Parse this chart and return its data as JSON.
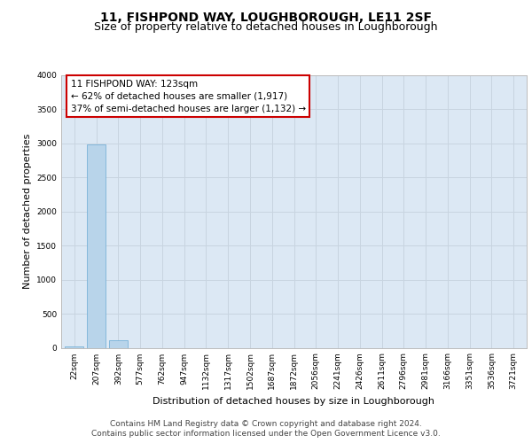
{
  "title": "11, FISHPOND WAY, LOUGHBOROUGH, LE11 2SF",
  "subtitle": "Size of property relative to detached houses in Loughborough",
  "xlabel": "Distribution of detached houses by size in Loughborough",
  "ylabel": "Number of detached properties",
  "categories": [
    "22sqm",
    "207sqm",
    "392sqm",
    "577sqm",
    "762sqm",
    "947sqm",
    "1132sqm",
    "1317sqm",
    "1502sqm",
    "1687sqm",
    "1872sqm",
    "2056sqm",
    "2241sqm",
    "2426sqm",
    "2611sqm",
    "2796sqm",
    "2981sqm",
    "3166sqm",
    "3351sqm",
    "3536sqm",
    "3721sqm"
  ],
  "values": [
    25,
    2980,
    110,
    0,
    0,
    0,
    0,
    0,
    0,
    0,
    0,
    0,
    0,
    0,
    0,
    0,
    0,
    0,
    0,
    0,
    0
  ],
  "bar_color": "#b8d4ea",
  "bar_edge_color": "#6aaad4",
  "ylim": [
    0,
    4000
  ],
  "yticks": [
    0,
    500,
    1000,
    1500,
    2000,
    2500,
    3000,
    3500,
    4000
  ],
  "annotation_text": "11 FISHPOND WAY: 123sqm\n← 62% of detached houses are smaller (1,917)\n37% of semi-detached houses are larger (1,132) →",
  "annotation_box_color": "#ffffff",
  "annotation_border_color": "#cc0000",
  "footer_line1": "Contains HM Land Registry data © Crown copyright and database right 2024.",
  "footer_line2": "Contains public sector information licensed under the Open Government Licence v3.0.",
  "grid_color": "#c8d4e0",
  "plot_bg_color": "#dce8f4",
  "title_fontsize": 10,
  "subtitle_fontsize": 9,
  "ylabel_fontsize": 8,
  "xlabel_fontsize": 8,
  "tick_fontsize": 6.5,
  "annotation_fontsize": 7.5,
  "footer_fontsize": 6.5
}
